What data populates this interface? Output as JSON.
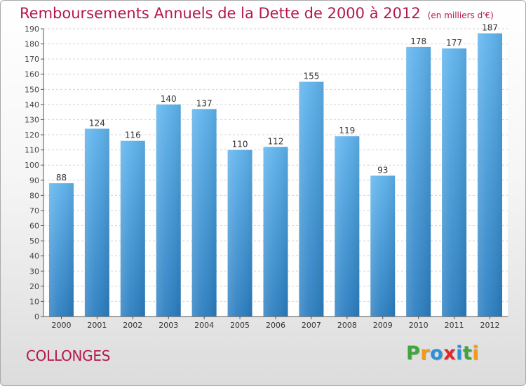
{
  "title": "Remboursements Annuels de la Dette de 2000 à 2012",
  "unit": "(en milliers d'€)",
  "city": "COLLONGES",
  "logo": {
    "letters": [
      {
        "ch": "P",
        "color": "#3fa63a"
      },
      {
        "ch": "r",
        "color": "#f39a1e"
      },
      {
        "ch": "o",
        "color": "#2e8fd9"
      },
      {
        "ch": "x",
        "color": "#e2262b"
      },
      {
        "ch": "i",
        "color": "#2e8fd9"
      },
      {
        "ch": "t",
        "color": "#3fa63a"
      },
      {
        "ch": "i",
        "color": "#f39a1e"
      }
    ]
  },
  "colors": {
    "accent": "#b5174e",
    "bar_top": "#5db2ec",
    "bar_bottom": "#2a7dc0"
  },
  "chart_data": {
    "type": "bar",
    "categories": [
      "2000",
      "2001",
      "2002",
      "2003",
      "2004",
      "2005",
      "2006",
      "2007",
      "2008",
      "2009",
      "2010",
      "2011",
      "2012"
    ],
    "values": [
      88,
      124,
      116,
      140,
      137,
      110,
      112,
      155,
      119,
      93,
      178,
      177,
      187
    ],
    "ylim": [
      0,
      190
    ],
    "yticks": [
      0,
      10,
      20,
      30,
      40,
      50,
      60,
      70,
      80,
      90,
      100,
      110,
      120,
      130,
      140,
      150,
      160,
      170,
      180,
      190
    ],
    "grid": true,
    "legend": "none"
  }
}
